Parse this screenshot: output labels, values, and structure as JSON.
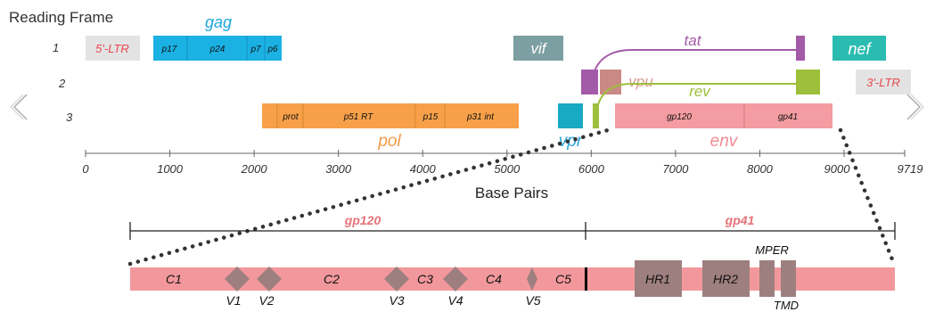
{
  "header": {
    "reading_frame_label": "Reading Frame"
  },
  "frames": {
    "f1": "1",
    "f2": "2",
    "f3": "3"
  },
  "genes": {
    "ltr5": "5'-LTR",
    "gag": "gag",
    "gag_parts": {
      "p17": "p17",
      "p24": "p24",
      "p7": "p7",
      "p6": "p6"
    },
    "vif": "vif",
    "tat": "tat",
    "nef": "nef",
    "vpu": "vpu",
    "ltr3": "3'-LTR",
    "rev": "rev",
    "pol": "pol",
    "pol_parts": {
      "prot": "prot",
      "p51rt": "p51 RT",
      "p15": "p15",
      "p31int": "p31 int"
    },
    "vpr": "vpr",
    "env": "env",
    "env_parts": {
      "gp120": "gp120",
      "gp41": "gp41"
    }
  },
  "axis": {
    "title": "Base Pairs",
    "ticks": [
      "0",
      "1000",
      "2000",
      "3000",
      "4000",
      "5000",
      "6000",
      "7000",
      "8000",
      "9000",
      "9719"
    ]
  },
  "detail": {
    "gp120_label": "gp120",
    "gp41_label": "gp41",
    "regions": {
      "c1": "C1",
      "c2": "C2",
      "c3": "C3",
      "c4": "C4",
      "c5": "C5",
      "v1": "V1",
      "v2": "V2",
      "v3": "V3",
      "v4": "V4",
      "v5": "V5",
      "hr1": "HR1",
      "hr2": "HR2",
      "mper": "MPER",
      "tmd": "TMD"
    }
  },
  "nav": {
    "prev_arrow": "chevron-left-icon",
    "next_arrow": "chevron-right-icon"
  },
  "colors": {
    "ltr_bg": "#e3e3e3",
    "ltr_text": "#e8474d",
    "gag": "#1bb1e3",
    "gag_label": "#1aa7dc",
    "vif": "#7c9fa1",
    "tat": "#a35ba7",
    "nef": "#2bbcb1",
    "vpu": "#c98a85",
    "vpu_label": "#d89a8f",
    "rev": "#9dbf3b",
    "pol": "#f7a049",
    "pol_label": "#f49b45",
    "vpr": "#18a9c3",
    "vpr_label": "#2aa6d9",
    "env": "#f39ca1",
    "env_label": "#ef8b93",
    "detail_bar": "#f2989c",
    "detail_label": "#e5727a",
    "domain_box": "#9e7f7f",
    "axis": "#666666"
  }
}
